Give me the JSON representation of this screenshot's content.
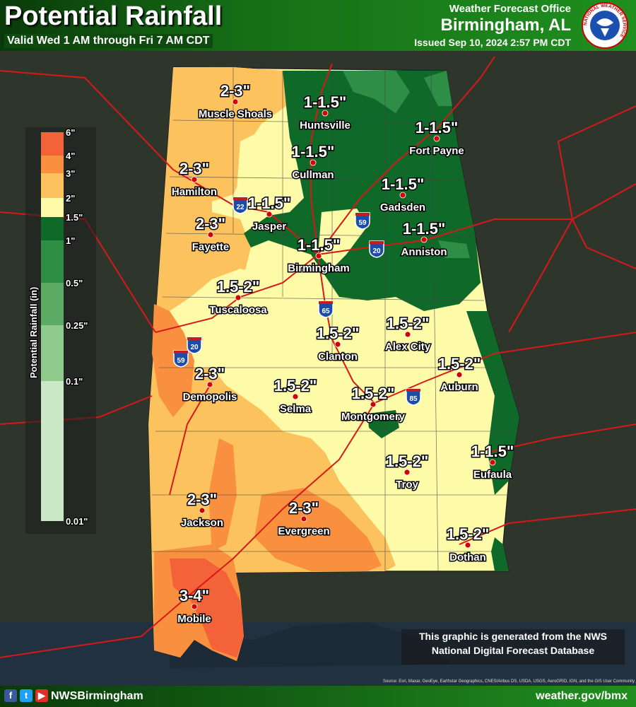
{
  "header": {
    "title": "Potential Rainfall",
    "valid": "Valid Wed 1 AM through Fri 7 AM CDT",
    "office_label": "Weather Forecast Office",
    "office_city": "Birmingham, AL",
    "issued": "Issued Sep 10, 2024 2:57 PM CDT",
    "logo_text": "NATIONAL WEATHER SERVICE"
  },
  "legend": {
    "title": "Potential Rainfall (in)",
    "ticks": [
      "6\"",
      "4\"",
      "3\"",
      "2\"",
      "1.5\"",
      "1\"",
      "0.5\"",
      "0.25\"",
      "0.1\"",
      "0.01\""
    ],
    "colors": [
      "#f4623a",
      "#f89040",
      "#fcc25e",
      "#fefba8",
      "#0f6a2a",
      "#2f8e45",
      "#5cab64",
      "#8fcb8c",
      "#cbe8c6"
    ]
  },
  "locations": [
    {
      "amount": "2-3\"",
      "city": "Muscle Shoals"
    },
    {
      "amount": "1-1.5\"",
      "city": "Huntsville"
    },
    {
      "amount": "1-1.5\"",
      "city": "Fort Payne"
    },
    {
      "amount": "1-1.5\"",
      "city": "Cullman"
    },
    {
      "amount": "2-3\"",
      "city": "Hamilton"
    },
    {
      "amount": "1-1.5\"",
      "city": "Gadsden"
    },
    {
      "amount": "1-1.5\"",
      "city": "Jasper"
    },
    {
      "amount": "2-3\"",
      "city": "Fayette"
    },
    {
      "amount": "1-1.5\"",
      "city": "Anniston"
    },
    {
      "amount": "1-1.5\"",
      "city": "Birmingham"
    },
    {
      "amount": "1.5-2\"",
      "city": "Tuscaloosa"
    },
    {
      "amount": "1.5-2\"",
      "city": "Alex City"
    },
    {
      "amount": "1.5-2\"",
      "city": "Clanton"
    },
    {
      "amount": "1.5-2\"",
      "city": "Auburn"
    },
    {
      "amount": "2-3\"",
      "city": "Demopolis"
    },
    {
      "amount": "1.5-2\"",
      "city": "Selma"
    },
    {
      "amount": "1.5-2\"",
      "city": "Montgomery"
    },
    {
      "amount": "1-1.5\"",
      "city": "Eufaula"
    },
    {
      "amount": "1.5-2\"",
      "city": "Troy"
    },
    {
      "amount": "2-3\"",
      "city": "Jackson"
    },
    {
      "amount": "2-3\"",
      "city": "Evergreen"
    },
    {
      "amount": "1.5-2\"",
      "city": "Dothan"
    },
    {
      "amount": "3-4\"",
      "city": "Mobile"
    }
  ],
  "interstates": [
    "22",
    "59",
    "20",
    "65",
    "20",
    "59",
    "85"
  ],
  "note": {
    "line1": "This graphic is generated from the NWS",
    "line2": "National Digital Forecast Database"
  },
  "source_credit": "Source: Esri, Maxar, GeoEye, Earthstar Geographics, CNES/Airbus DS, USDA, USGS, AeroGRID, IGN, and the GIS User Community",
  "footer": {
    "social_icons": [
      "facebook-icon",
      "twitter-icon",
      "youtube-icon"
    ],
    "handle": "NWSBirmingham",
    "website": "weather.gov/bmx"
  }
}
